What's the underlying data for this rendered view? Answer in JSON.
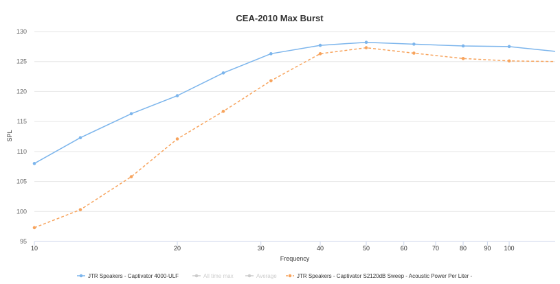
{
  "colors": {
    "series1": "#7cb5ec",
    "series2": "#f7a35c",
    "inactive": "#cccccc",
    "grid": "#e6e6e6",
    "axis": "#ccd6eb",
    "text": "#333333",
    "muted": "#666666"
  },
  "chart_data": {
    "type": "line",
    "title": "CEA-2010 Max Burst",
    "xlabel": "Frequency",
    "ylabel": "SPL",
    "xscale": "log",
    "xlim": [
      10,
      125
    ],
    "ylim": [
      95,
      130
    ],
    "grid": "horizontal",
    "legend_position": "bottom",
    "x_ticks": [
      {
        "value": 10,
        "label": "10"
      },
      {
        "value": 20,
        "label": "20"
      },
      {
        "value": 30,
        "label": "30"
      },
      {
        "value": 40,
        "label": "40"
      },
      {
        "value": 50,
        "label": "50"
      },
      {
        "value": 60,
        "label": "60"
      },
      {
        "value": 70,
        "label": "70"
      },
      {
        "value": 80,
        "label": "80"
      },
      {
        "value": 90,
        "label": "90"
      },
      {
        "value": 100,
        "label": "100"
      }
    ],
    "y_ticks": [
      {
        "value": 95,
        "label": "95"
      },
      {
        "value": 100,
        "label": "100"
      },
      {
        "value": 105,
        "label": "105"
      },
      {
        "value": 110,
        "label": "110"
      },
      {
        "value": 115,
        "label": "115"
      },
      {
        "value": 120,
        "label": "120"
      },
      {
        "value": 125,
        "label": "125"
      },
      {
        "value": 130,
        "label": "130"
      }
    ],
    "series": [
      {
        "name": "JTR Speakers - Captivator 4000-ULF",
        "style": "solid",
        "visible": true,
        "x": [
          10,
          12.5,
          16,
          20,
          25,
          31.5,
          40,
          50,
          63,
          80,
          100,
          125
        ],
        "y": [
          108.0,
          112.3,
          116.3,
          119.3,
          123.1,
          126.3,
          127.7,
          128.2,
          127.9,
          127.6,
          127.5,
          126.7
        ]
      },
      {
        "name": "All time max",
        "style": "solid",
        "visible": false,
        "x": [],
        "y": []
      },
      {
        "name": "Average",
        "style": "solid",
        "visible": false,
        "x": [],
        "y": []
      },
      {
        "name": "JTR Speakers - Captivator S2120dB Sweep - Acoustic Power Per Liter -",
        "style": "dashed",
        "visible": true,
        "x": [
          10,
          12.5,
          16,
          20,
          25,
          31.5,
          40,
          50,
          63,
          80,
          100,
          125
        ],
        "y": [
          97.3,
          100.3,
          105.8,
          112.1,
          116.7,
          121.8,
          126.3,
          127.3,
          126.4,
          125.5,
          125.1,
          125.0
        ]
      }
    ]
  }
}
